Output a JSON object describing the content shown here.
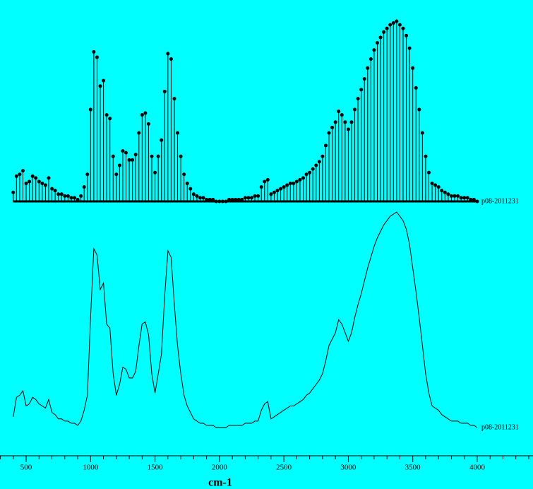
{
  "chart_data": [
    {
      "type": "stem",
      "series_label": "p08-2011231",
      "color": "#000000",
      "x": [
        400,
        425,
        450,
        475,
        500,
        525,
        550,
        575,
        600,
        625,
        650,
        675,
        700,
        725,
        750,
        775,
        800,
        825,
        850,
        875,
        900,
        925,
        950,
        975,
        1000,
        1025,
        1050,
        1075,
        1100,
        1125,
        1150,
        1175,
        1200,
        1225,
        1250,
        1275,
        1300,
        1325,
        1350,
        1375,
        1400,
        1425,
        1450,
        1475,
        1500,
        1525,
        1550,
        1575,
        1600,
        1625,
        1650,
        1675,
        1700,
        1725,
        1750,
        1775,
        1800,
        1825,
        1850,
        1875,
        1900,
        1925,
        1950,
        1975,
        2000,
        2025,
        2050,
        2075,
        2100,
        2125,
        2150,
        2175,
        2200,
        2225,
        2250,
        2275,
        2300,
        2325,
        2350,
        2375,
        2400,
        2425,
        2450,
        2475,
        2500,
        2525,
        2550,
        2575,
        2600,
        2625,
        2650,
        2675,
        2700,
        2725,
        2750,
        2775,
        2800,
        2825,
        2850,
        2875,
        2900,
        2925,
        2950,
        2975,
        3000,
        3025,
        3050,
        3075,
        3100,
        3125,
        3150,
        3175,
        3200,
        3225,
        3250,
        3275,
        3300,
        3325,
        3350,
        3375,
        3400,
        3425,
        3450,
        3475,
        3500,
        3525,
        3550,
        3575,
        3600,
        3625,
        3650,
        3675,
        3700,
        3725,
        3750,
        3775,
        3800,
        3825,
        3850,
        3875,
        3900,
        3925,
        3950,
        3975,
        4000
      ],
      "values": [
        5,
        14,
        15,
        17,
        10,
        11,
        14,
        13,
        11,
        10,
        9,
        13,
        7,
        6,
        4,
        4,
        3,
        3,
        2,
        2,
        1,
        3,
        8,
        15,
        51,
        83,
        80,
        64,
        67,
        48,
        46,
        25,
        15,
        20,
        28,
        27,
        23,
        23,
        26,
        38,
        48,
        49,
        43,
        25,
        16,
        25,
        34,
        61,
        82,
        79,
        57,
        38,
        25,
        15,
        10,
        7,
        4,
        3,
        2,
        2,
        1,
        1,
        1,
        0,
        0,
        0,
        0,
        1,
        1,
        1,
        1,
        1,
        2,
        2,
        2,
        3,
        3,
        8,
        11,
        12,
        4,
        5,
        6,
        7,
        8,
        9,
        10,
        10,
        11,
        12,
        13,
        15,
        16,
        18,
        20,
        22,
        25,
        31,
        38,
        41,
        44,
        50,
        48,
        44,
        40,
        44,
        51,
        57,
        62,
        68,
        74,
        79,
        84,
        88,
        91,
        94,
        96,
        98,
        99,
        100,
        98,
        96,
        92,
        85,
        74,
        63,
        51,
        38,
        25,
        16,
        10,
        9,
        8,
        6,
        5,
        4,
        3,
        3,
        3,
        2,
        2,
        2,
        1,
        1,
        0
      ],
      "xlim": [
        297,
        4433
      ],
      "ylim": [
        0,
        100
      ]
    },
    {
      "type": "line",
      "series_label": "p08-2011231",
      "color": "#000000",
      "x": [
        400,
        425,
        450,
        475,
        500,
        525,
        550,
        575,
        600,
        625,
        650,
        675,
        700,
        725,
        750,
        775,
        800,
        825,
        850,
        875,
        900,
        925,
        950,
        975,
        1000,
        1025,
        1050,
        1075,
        1100,
        1125,
        1150,
        1175,
        1200,
        1225,
        1250,
        1275,
        1300,
        1325,
        1350,
        1375,
        1400,
        1425,
        1450,
        1475,
        1500,
        1525,
        1550,
        1575,
        1600,
        1625,
        1650,
        1675,
        1700,
        1725,
        1750,
        1775,
        1800,
        1825,
        1850,
        1875,
        1900,
        1925,
        1950,
        1975,
        2000,
        2025,
        2050,
        2075,
        2100,
        2125,
        2150,
        2175,
        2200,
        2225,
        2250,
        2275,
        2300,
        2325,
        2350,
        2375,
        2400,
        2425,
        2450,
        2475,
        2500,
        2525,
        2550,
        2575,
        2600,
        2625,
        2650,
        2675,
        2700,
        2725,
        2750,
        2775,
        2800,
        2825,
        2850,
        2875,
        2900,
        2925,
        2950,
        2975,
        3000,
        3025,
        3050,
        3075,
        3100,
        3125,
        3150,
        3175,
        3200,
        3225,
        3250,
        3275,
        3300,
        3325,
        3350,
        3375,
        3400,
        3425,
        3450,
        3475,
        3500,
        3525,
        3550,
        3575,
        3600,
        3625,
        3650,
        3675,
        3700,
        3725,
        3750,
        3775,
        3800,
        3825,
        3850,
        3875,
        3900,
        3925,
        3950,
        3975,
        4000
      ],
      "values": [
        5,
        14,
        15,
        17,
        10,
        11,
        14,
        13,
        11,
        10,
        9,
        13,
        7,
        6,
        4,
        4,
        3,
        3,
        2,
        2,
        1,
        3,
        8,
        15,
        51,
        83,
        80,
        64,
        67,
        48,
        46,
        25,
        15,
        20,
        28,
        27,
        23,
        23,
        26,
        38,
        48,
        49,
        43,
        25,
        16,
        25,
        34,
        61,
        82,
        79,
        57,
        38,
        25,
        15,
        10,
        7,
        4,
        3,
        2,
        2,
        1,
        1,
        1,
        0,
        0,
        0,
        0,
        1,
        1,
        1,
        1,
        1,
        2,
        2,
        2,
        3,
        3,
        8,
        11,
        12,
        4,
        5,
        6,
        7,
        8,
        9,
        10,
        10,
        11,
        12,
        13,
        15,
        16,
        18,
        20,
        22,
        25,
        31,
        38,
        41,
        44,
        50,
        48,
        44,
        40,
        44,
        51,
        57,
        62,
        68,
        74,
        79,
        84,
        88,
        91,
        94,
        96,
        98,
        99,
        100,
        98,
        96,
        92,
        85,
        74,
        63,
        51,
        38,
        25,
        16,
        10,
        9,
        8,
        6,
        5,
        4,
        3,
        3,
        3,
        2,
        2,
        2,
        1,
        1,
        0
      ],
      "xlim": [
        297,
        4433
      ],
      "ylim": [
        0,
        100
      ],
      "xlabel": "cm-1",
      "xticks": [
        500,
        1000,
        1500,
        2000,
        2500,
        3000,
        3500,
        4000
      ],
      "xminorticks": [
        300,
        400,
        600,
        700,
        800,
        900,
        1100,
        1200,
        1300,
        1400,
        1600,
        1700,
        1800,
        1900,
        2100,
        2200,
        2300,
        2400,
        2600,
        2700,
        2800,
        2900,
        3100,
        3200,
        3300,
        3400,
        3600,
        3700,
        3800,
        3900,
        4100,
        4200,
        4300,
        4400
      ]
    }
  ]
}
